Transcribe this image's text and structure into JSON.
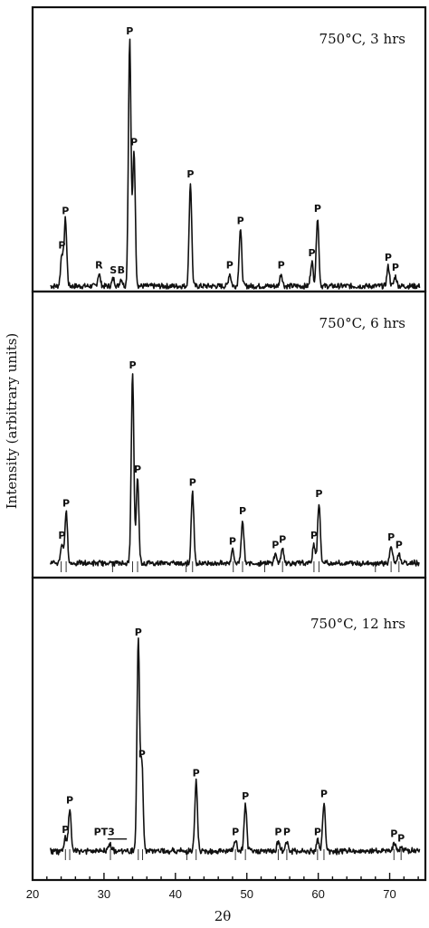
{
  "chart_data": {
    "type": "line",
    "xlabel": "2θ",
    "ylabel": "Intensity (arbitrary units)",
    "xlim": [
      20,
      75
    ],
    "xticks": [
      20,
      30,
      40,
      50,
      60,
      70
    ],
    "panels": [
      {
        "label": "750°C, 3 hrs",
        "peaks": [
          {
            "x": 24.1,
            "h": 0.13,
            "label": "P"
          },
          {
            "x": 24.6,
            "h": 0.27,
            "label": "P"
          },
          {
            "x": 29.3,
            "h": 0.05,
            "label": "R"
          },
          {
            "x": 31.3,
            "h": 0.03,
            "label": "S"
          },
          {
            "x": 32.4,
            "h": 0.03,
            "label": "B"
          },
          {
            "x": 33.6,
            "h": 1.0,
            "label": "P"
          },
          {
            "x": 34.2,
            "h": 0.55,
            "label": "P"
          },
          {
            "x": 42.1,
            "h": 0.42,
            "label": "P"
          },
          {
            "x": 47.6,
            "h": 0.05,
            "label": "P"
          },
          {
            "x": 49.1,
            "h": 0.23,
            "label": "P"
          },
          {
            "x": 54.8,
            "h": 0.05,
            "label": "P"
          },
          {
            "x": 59.1,
            "h": 0.1,
            "label": "P"
          },
          {
            "x": 59.9,
            "h": 0.28,
            "label": "P"
          },
          {
            "x": 69.8,
            "h": 0.08,
            "label": "P"
          },
          {
            "x": 70.8,
            "h": 0.04,
            "label": "P"
          }
        ],
        "ref_lines": []
      },
      {
        "label": "750°C, 6 hrs",
        "peaks": [
          {
            "x": 24.1,
            "h": 0.1,
            "label": "P"
          },
          {
            "x": 24.7,
            "h": 0.27,
            "label": "P"
          },
          {
            "x": 34.0,
            "h": 1.0,
            "label": "P"
          },
          {
            "x": 34.7,
            "h": 0.45,
            "label": "P"
          },
          {
            "x": 42.4,
            "h": 0.38,
            "label": "P"
          },
          {
            "x": 48.0,
            "h": 0.07,
            "label": "P"
          },
          {
            "x": 49.4,
            "h": 0.23,
            "label": "P"
          },
          {
            "x": 54.0,
            "h": 0.05,
            "label": "P"
          },
          {
            "x": 55.0,
            "h": 0.08,
            "label": "P"
          },
          {
            "x": 59.4,
            "h": 0.1,
            "label": "P"
          },
          {
            "x": 60.1,
            "h": 0.32,
            "label": "P"
          },
          {
            "x": 70.2,
            "h": 0.09,
            "label": "P"
          },
          {
            "x": 71.3,
            "h": 0.05,
            "label": "P"
          }
        ],
        "ref_lines": [
          24.0,
          24.7,
          31.2,
          34.0,
          34.7,
          41.5,
          42.4,
          48.1,
          49.4,
          52.5,
          55.0,
          59.4,
          60.1,
          68.0,
          70.2,
          71.3
        ]
      },
      {
        "label": "750°C, 12 hrs",
        "peaks": [
          {
            "x": 24.6,
            "h": 0.06,
            "label": "P"
          },
          {
            "x": 25.2,
            "h": 0.2,
            "label": "P"
          },
          {
            "x": 30.8,
            "h": 0.04,
            "label": "PT3"
          },
          {
            "x": 34.8,
            "h": 1.0,
            "label": "P"
          },
          {
            "x": 35.3,
            "h": 0.42,
            "label": "P"
          },
          {
            "x": 42.9,
            "h": 0.33,
            "label": "P"
          },
          {
            "x": 48.4,
            "h": 0.05,
            "label": "P"
          },
          {
            "x": 49.8,
            "h": 0.22,
            "label": "P"
          },
          {
            "x": 54.4,
            "h": 0.05,
            "label": "P"
          },
          {
            "x": 55.6,
            "h": 0.05,
            "label": "P"
          },
          {
            "x": 59.9,
            "h": 0.05,
            "label": "P"
          },
          {
            "x": 60.8,
            "h": 0.23,
            "label": "P"
          },
          {
            "x": 70.6,
            "h": 0.04,
            "label": "P"
          },
          {
            "x": 71.6,
            "h": 0.02,
            "label": "P"
          }
        ],
        "ref_lines": [
          24.6,
          25.2,
          30.9,
          34.8,
          35.4,
          41.6,
          42.9,
          48.4,
          49.8,
          54.4,
          55.6,
          59.9,
          60.8,
          70.6,
          71.6
        ]
      }
    ]
  }
}
